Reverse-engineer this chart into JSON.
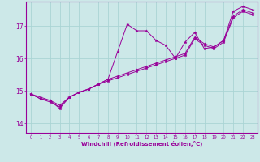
{
  "xlabel": "Windchill (Refroidissement éolien,°C)",
  "background_color": "#cce8e8",
  "grid_color": "#aad4d4",
  "line_color": "#990099",
  "xlim": [
    -0.5,
    23.5
  ],
  "ylim": [
    13.7,
    17.75
  ],
  "yticks": [
    14,
    15,
    16,
    17
  ],
  "xticks": [
    0,
    1,
    2,
    3,
    4,
    5,
    6,
    7,
    8,
    9,
    10,
    11,
    12,
    13,
    14,
    15,
    16,
    17,
    18,
    19,
    20,
    21,
    22,
    23
  ],
  "series1": [
    [
      0,
      14.9
    ],
    [
      1,
      14.8
    ],
    [
      2,
      14.7
    ],
    [
      3,
      14.45
    ],
    [
      4,
      14.8
    ],
    [
      5,
      14.95
    ],
    [
      6,
      15.05
    ],
    [
      7,
      15.2
    ],
    [
      8,
      15.35
    ],
    [
      9,
      16.2
    ],
    [
      10,
      17.05
    ],
    [
      11,
      16.85
    ],
    [
      12,
      16.85
    ],
    [
      13,
      16.55
    ],
    [
      14,
      16.4
    ],
    [
      15,
      16.0
    ],
    [
      16,
      16.5
    ],
    [
      17,
      16.8
    ],
    [
      18,
      16.3
    ],
    [
      19,
      16.35
    ],
    [
      20,
      16.55
    ],
    [
      21,
      17.45
    ],
    [
      22,
      17.6
    ],
    [
      23,
      17.5
    ]
  ],
  "series2": [
    [
      0,
      14.9
    ],
    [
      1,
      14.75
    ],
    [
      2,
      14.7
    ],
    [
      3,
      14.55
    ],
    [
      4,
      14.8
    ],
    [
      5,
      14.95
    ],
    [
      6,
      15.05
    ],
    [
      7,
      15.2
    ],
    [
      8,
      15.35
    ],
    [
      9,
      15.45
    ],
    [
      10,
      15.55
    ],
    [
      11,
      15.65
    ],
    [
      12,
      15.75
    ],
    [
      13,
      15.85
    ],
    [
      14,
      15.95
    ],
    [
      15,
      16.05
    ],
    [
      16,
      16.15
    ],
    [
      17,
      16.65
    ],
    [
      18,
      16.45
    ],
    [
      19,
      16.35
    ],
    [
      20,
      16.55
    ],
    [
      21,
      17.3
    ],
    [
      22,
      17.5
    ],
    [
      23,
      17.4
    ]
  ],
  "series3": [
    [
      0,
      14.9
    ],
    [
      1,
      14.75
    ],
    [
      2,
      14.65
    ],
    [
      3,
      14.5
    ],
    [
      4,
      14.8
    ],
    [
      5,
      14.95
    ],
    [
      6,
      15.05
    ],
    [
      7,
      15.2
    ],
    [
      8,
      15.3
    ],
    [
      9,
      15.4
    ],
    [
      10,
      15.5
    ],
    [
      11,
      15.6
    ],
    [
      12,
      15.7
    ],
    [
      13,
      15.8
    ],
    [
      14,
      15.9
    ],
    [
      15,
      16.0
    ],
    [
      16,
      16.1
    ],
    [
      17,
      16.6
    ],
    [
      18,
      16.4
    ],
    [
      19,
      16.3
    ],
    [
      20,
      16.5
    ],
    [
      21,
      17.25
    ],
    [
      22,
      17.45
    ],
    [
      23,
      17.35
    ]
  ]
}
